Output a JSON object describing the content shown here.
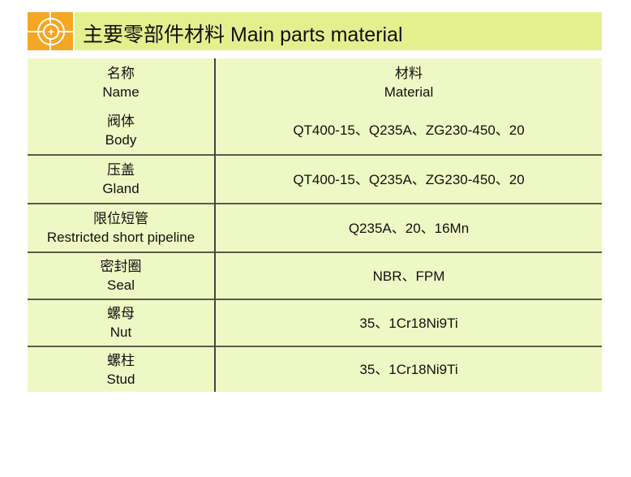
{
  "header": {
    "title": "主要零部件材料  Main parts material",
    "logo_icon": "circle-cross-logo"
  },
  "colors": {
    "logo": "#f5a623",
    "header": "#e4f08e",
    "table": "#eef8c4"
  },
  "table": {
    "header": {
      "name_cn": "名称",
      "name_en": "Name",
      "material_cn": "材料",
      "material_en": "Material"
    },
    "rows": [
      {
        "cn": "阀体",
        "en": "Body",
        "material": "QT400-15、Q235A、ZG230-450、20"
      },
      {
        "cn": "压盖",
        "en": "Gland",
        "material": "QT400-15、Q235A、ZG230-450、20"
      },
      {
        "cn": "限位短管",
        "en": "Restricted short pipeline",
        "material": "Q235A、20、16Mn"
      },
      {
        "cn": "密封圈",
        "en": "Seal",
        "material": "NBR、FPM"
      },
      {
        "cn": "螺母",
        "en": "Nut",
        "material": "35、1Cr18Ni9Ti"
      },
      {
        "cn": "螺柱",
        "en": "Stud",
        "material": "35、1Cr18Ni9Ti"
      }
    ]
  }
}
